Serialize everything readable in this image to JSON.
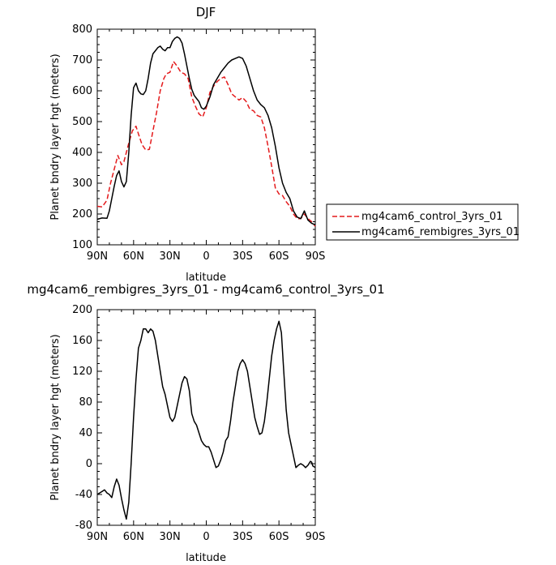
{
  "chart_data": [
    {
      "type": "line",
      "title": "DJF",
      "xlabel": "latitude",
      "ylabel": "Planet bndry layer hgt (meters)",
      "xlim": [
        90,
        -90
      ],
      "ylim": [
        100,
        800
      ],
      "x_ticks": [
        90,
        60,
        30,
        0,
        -30,
        -60,
        -90
      ],
      "x_tick_labels": [
        "90N",
        "60N",
        "30N",
        "0",
        "30S",
        "60S",
        "90S"
      ],
      "y_ticks": [
        100,
        200,
        300,
        400,
        500,
        600,
        700,
        800
      ],
      "legend": "right",
      "series": [
        {
          "name": "mg4cam6_control_3yrs_01",
          "color": "#e41a1c",
          "dash": "dashed",
          "x": [
            90,
            86,
            82,
            79,
            76,
            73,
            70,
            68,
            66,
            64,
            61,
            58,
            56,
            53,
            50,
            47,
            44,
            41,
            38,
            35,
            33,
            30,
            27,
            24,
            21,
            18,
            15,
            12,
            9,
            6,
            3,
            0,
            -3,
            -6,
            -9,
            -12,
            -15,
            -18,
            -21,
            -24,
            -27,
            -30,
            -33,
            -36,
            -39,
            -42,
            -45,
            -48,
            -51,
            -54,
            -57,
            -60,
            -63,
            -66,
            -69,
            -72,
            -75,
            -78,
            -81,
            -84,
            -87,
            -88,
            -90
          ],
          "y": [
            225,
            223,
            245,
            300,
            345,
            390,
            360,
            370,
            400,
            430,
            470,
            485,
            460,
            425,
            408,
            410,
            470,
            530,
            600,
            640,
            655,
            660,
            695,
            680,
            660,
            655,
            640,
            580,
            550,
            525,
            515,
            545,
            595,
            615,
            630,
            640,
            645,
            620,
            590,
            580,
            570,
            578,
            565,
            540,
            535,
            520,
            515,
            480,
            420,
            355,
            285,
            265,
            260,
            240,
            225,
            200,
            185,
            185,
            200,
            185,
            175,
            170,
            160
          ]
        },
        {
          "name": "mg4cam6_rembigres_3yrs_01",
          "color": "#000000",
          "dash": "solid",
          "x": [
            90,
            86,
            82,
            80,
            78,
            76,
            74,
            72,
            70,
            68,
            66,
            64,
            62,
            60,
            58,
            56,
            54,
            52,
            50,
            48,
            46,
            44,
            42,
            40,
            38,
            36,
            34,
            32,
            30,
            28,
            26,
            24,
            22,
            20,
            18,
            16,
            14,
            12,
            10,
            8,
            6,
            4,
            2,
            0,
            -3,
            -6,
            -9,
            -12,
            -15,
            -18,
            -21,
            -24,
            -27,
            -30,
            -33,
            -36,
            -39,
            -42,
            -45,
            -48,
            -51,
            -54,
            -57,
            -60,
            -63,
            -66,
            -69,
            -72,
            -75,
            -78,
            -81,
            -84,
            -87,
            -90
          ],
          "y": [
            183,
            187,
            186,
            210,
            250,
            290,
            325,
            340,
            305,
            288,
            305,
            400,
            520,
            610,
            625,
            600,
            590,
            588,
            600,
            640,
            690,
            720,
            730,
            740,
            745,
            735,
            730,
            740,
            740,
            760,
            770,
            775,
            770,
            755,
            720,
            680,
            640,
            605,
            585,
            575,
            565,
            545,
            540,
            550,
            580,
            620,
            640,
            660,
            675,
            690,
            700,
            705,
            710,
            705,
            680,
            640,
            600,
            570,
            555,
            545,
            520,
            480,
            420,
            350,
            300,
            270,
            250,
            210,
            190,
            185,
            210,
            180,
            170,
            165
          ]
        }
      ]
    },
    {
      "type": "line",
      "title": "mg4cam6_rembigres_3yrs_01 - mg4cam6_control_3yrs_01",
      "xlabel": "latitude",
      "ylabel": "Planet bndry layer hgt (meters)",
      "xlim": [
        90,
        -90
      ],
      "ylim": [
        -80,
        200
      ],
      "x_ticks": [
        90,
        60,
        30,
        0,
        -30,
        -60,
        -90
      ],
      "x_tick_labels": [
        "90N",
        "60N",
        "30N",
        "0",
        "30S",
        "60S",
        "90S"
      ],
      "y_ticks": [
        -80,
        -40,
        0,
        40,
        80,
        120,
        160,
        200
      ],
      "series": [
        {
          "color": "#000000",
          "x": [
            90,
            88,
            86,
            84,
            82,
            80,
            78,
            76,
            74,
            72,
            70,
            68,
            66,
            64,
            62,
            60,
            58,
            56,
            54,
            52,
            50,
            48,
            46,
            44,
            42,
            40,
            38,
            36,
            34,
            32,
            30,
            28,
            26,
            24,
            22,
            20,
            18,
            16,
            14,
            12,
            10,
            8,
            6,
            4,
            2,
            0,
            -2,
            -4,
            -6,
            -8,
            -10,
            -12,
            -14,
            -16,
            -18,
            -20,
            -22,
            -24,
            -26,
            -28,
            -30,
            -32,
            -34,
            -36,
            -38,
            -40,
            -42,
            -44,
            -46,
            -48,
            -50,
            -52,
            -54,
            -56,
            -58,
            -60,
            -62,
            -64,
            -66,
            -68,
            -70,
            -72,
            -74,
            -76,
            -78,
            -80,
            -82,
            -84,
            -86,
            -87,
            -88,
            -90
          ],
          "y": [
            -40,
            -38,
            -36,
            -34,
            -38,
            -40,
            -44,
            -30,
            -20,
            -28,
            -45,
            -60,
            -72,
            -50,
            0,
            60,
            110,
            150,
            160,
            175,
            175,
            170,
            175,
            172,
            160,
            140,
            120,
            100,
            90,
            75,
            60,
            55,
            60,
            75,
            90,
            105,
            113,
            110,
            95,
            65,
            55,
            50,
            40,
            30,
            25,
            22,
            22,
            15,
            5,
            -5,
            -3,
            5,
            15,
            30,
            35,
            55,
            80,
            100,
            120,
            130,
            135,
            130,
            120,
            100,
            80,
            60,
            48,
            38,
            40,
            55,
            80,
            110,
            140,
            160,
            175,
            185,
            170,
            120,
            70,
            40,
            25,
            10,
            -5,
            -2,
            0,
            -2,
            -5,
            -2,
            3,
            2,
            -3,
            -5
          ]
        }
      ]
    }
  ],
  "legend_entries": [
    {
      "label": "mg4cam6_control_3yrs_01",
      "color": "#e41a1c",
      "dash": "dashed"
    },
    {
      "label": "mg4cam6_rembigres_3yrs_01",
      "color": "#000000",
      "dash": "solid"
    }
  ]
}
